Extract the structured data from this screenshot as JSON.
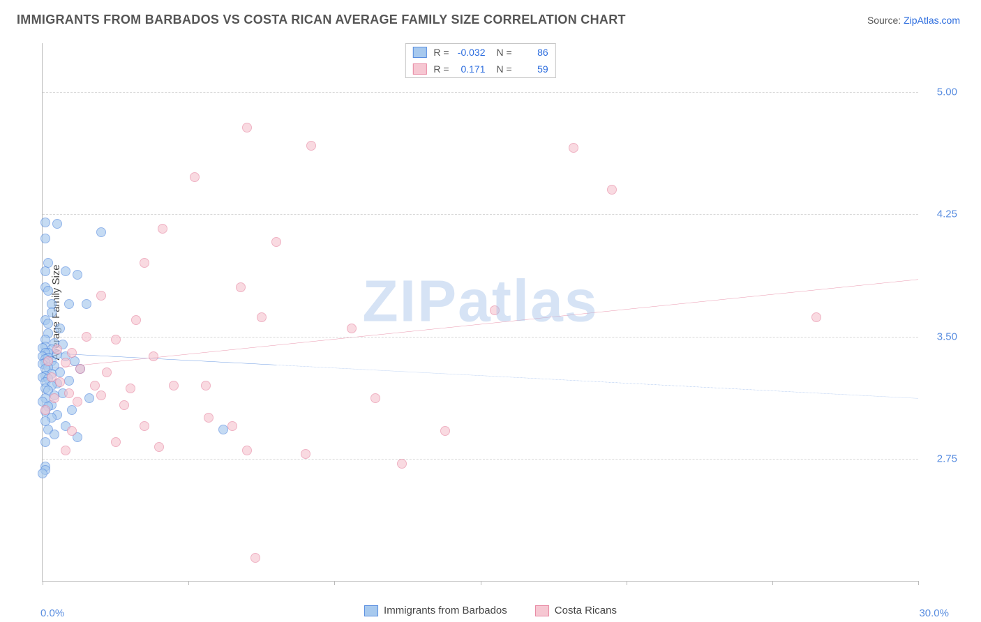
{
  "title": "IMMIGRANTS FROM BARBADOS VS COSTA RICAN AVERAGE FAMILY SIZE CORRELATION CHART",
  "source_prefix": "Source: ",
  "source_name": "ZipAtlas.com",
  "watermark": "ZIPatlas",
  "y_axis_label": "Average Family Size",
  "chart": {
    "type": "scatter",
    "background_color": "#ffffff",
    "grid_color": "#d8d8d8",
    "xlim": [
      0,
      30
    ],
    "ylim": [
      2.0,
      5.3
    ],
    "x_min_label": "0.0%",
    "x_max_label": "30.0%",
    "xtick_step": 5,
    "y_ticks": [
      5.0,
      4.25,
      3.5,
      2.75
    ],
    "y_tick_labels": [
      "5.00",
      "4.25",
      "3.50",
      "2.75"
    ],
    "tick_color": "#5a8ee0",
    "tick_fontsize": 15,
    "marker_radius": 7,
    "series": [
      {
        "name": "Immigrants from Barbados",
        "color_fill": "#a7c9ee",
        "color_stroke": "#5a8ee0",
        "R": "-0.032",
        "N": "86",
        "trend": {
          "y_at_xmin": 3.4,
          "y_at_xmax": 3.12,
          "solid_until_x": 8.0
        },
        "points": [
          [
            0.1,
            4.2
          ],
          [
            0.5,
            4.19
          ],
          [
            2.0,
            4.14
          ],
          [
            0.1,
            4.1
          ],
          [
            0.2,
            3.95
          ],
          [
            0.1,
            3.9
          ],
          [
            0.8,
            3.9
          ],
          [
            1.2,
            3.88
          ],
          [
            0.1,
            3.8
          ],
          [
            0.2,
            3.78
          ],
          [
            0.3,
            3.7
          ],
          [
            0.9,
            3.7
          ],
          [
            1.5,
            3.7
          ],
          [
            0.3,
            3.65
          ],
          [
            0.1,
            3.6
          ],
          [
            0.2,
            3.58
          ],
          [
            0.6,
            3.55
          ],
          [
            0.2,
            3.52
          ],
          [
            0.1,
            3.48
          ],
          [
            0.4,
            3.46
          ],
          [
            0.7,
            3.45
          ],
          [
            0.1,
            3.44
          ],
          [
            0.0,
            3.43
          ],
          [
            0.3,
            3.42
          ],
          [
            0.2,
            3.4
          ],
          [
            0.1,
            3.4
          ],
          [
            0.5,
            3.39
          ],
          [
            0.0,
            3.38
          ],
          [
            0.8,
            3.38
          ],
          [
            0.2,
            3.37
          ],
          [
            0.1,
            3.36
          ],
          [
            1.1,
            3.35
          ],
          [
            0.3,
            3.35
          ],
          [
            0.1,
            3.34
          ],
          [
            0.0,
            3.33
          ],
          [
            0.4,
            3.32
          ],
          [
            0.2,
            3.31
          ],
          [
            0.1,
            3.3
          ],
          [
            1.3,
            3.3
          ],
          [
            0.6,
            3.28
          ],
          [
            0.3,
            3.27
          ],
          [
            0.1,
            3.26
          ],
          [
            0.0,
            3.25
          ],
          [
            0.2,
            3.24
          ],
          [
            0.9,
            3.23
          ],
          [
            0.1,
            3.22
          ],
          [
            0.5,
            3.21
          ],
          [
            0.3,
            3.2
          ],
          [
            0.1,
            3.18
          ],
          [
            0.2,
            3.17
          ],
          [
            0.7,
            3.15
          ],
          [
            0.4,
            3.14
          ],
          [
            0.1,
            3.12
          ],
          [
            1.6,
            3.12
          ],
          [
            0.0,
            3.1
          ],
          [
            0.3,
            3.08
          ],
          [
            0.2,
            3.07
          ],
          [
            1.0,
            3.05
          ],
          [
            0.1,
            3.04
          ],
          [
            0.5,
            3.02
          ],
          [
            0.3,
            3.0
          ],
          [
            0.1,
            2.98
          ],
          [
            0.8,
            2.95
          ],
          [
            0.2,
            2.93
          ],
          [
            0.4,
            2.9
          ],
          [
            1.2,
            2.88
          ],
          [
            0.1,
            2.85
          ],
          [
            0.1,
            2.7
          ],
          [
            0.1,
            2.68
          ],
          [
            0.0,
            2.66
          ],
          [
            6.2,
            2.93
          ]
        ]
      },
      {
        "name": "Costa Ricans",
        "color_fill": "#f6c7d2",
        "color_stroke": "#e88aa4",
        "R": "0.171",
        "N": "59",
        "trend": {
          "y_at_xmin": 3.3,
          "y_at_xmax": 3.85,
          "solid_until_x": 30.0
        },
        "points": [
          [
            7.0,
            4.78
          ],
          [
            9.2,
            4.67
          ],
          [
            18.2,
            4.66
          ],
          [
            5.2,
            4.48
          ],
          [
            19.5,
            4.4
          ],
          [
            4.1,
            4.16
          ],
          [
            8.0,
            4.08
          ],
          [
            3.5,
            3.95
          ],
          [
            6.8,
            3.8
          ],
          [
            2.0,
            3.75
          ],
          [
            7.5,
            3.62
          ],
          [
            3.2,
            3.6
          ],
          [
            15.5,
            3.66
          ],
          [
            10.6,
            3.55
          ],
          [
            26.5,
            3.62
          ],
          [
            1.5,
            3.5
          ],
          [
            2.5,
            3.48
          ],
          [
            0.5,
            3.42
          ],
          [
            1.0,
            3.4
          ],
          [
            3.8,
            3.38
          ],
          [
            0.2,
            3.35
          ],
          [
            0.8,
            3.34
          ],
          [
            1.3,
            3.3
          ],
          [
            2.2,
            3.28
          ],
          [
            0.3,
            3.25
          ],
          [
            0.6,
            3.22
          ],
          [
            1.8,
            3.2
          ],
          [
            3.0,
            3.18
          ],
          [
            4.5,
            3.2
          ],
          [
            0.9,
            3.15
          ],
          [
            2.0,
            3.14
          ],
          [
            0.4,
            3.12
          ],
          [
            1.2,
            3.1
          ],
          [
            2.8,
            3.08
          ],
          [
            0.1,
            3.05
          ],
          [
            5.6,
            3.2
          ],
          [
            11.4,
            3.12
          ],
          [
            13.8,
            2.92
          ],
          [
            5.7,
            3.0
          ],
          [
            6.5,
            2.95
          ],
          [
            3.5,
            2.95
          ],
          [
            1.0,
            2.92
          ],
          [
            7.0,
            2.8
          ],
          [
            9.0,
            2.78
          ],
          [
            12.3,
            2.72
          ],
          [
            2.5,
            2.85
          ],
          [
            4.0,
            2.82
          ],
          [
            0.8,
            2.8
          ],
          [
            7.3,
            2.14
          ]
        ]
      }
    ]
  },
  "legend_bottom": [
    {
      "label": "Immigrants from Barbados",
      "fill": "#a7c9ee",
      "stroke": "#5a8ee0"
    },
    {
      "label": "Costa Ricans",
      "fill": "#f6c7d2",
      "stroke": "#e88aa4"
    }
  ]
}
